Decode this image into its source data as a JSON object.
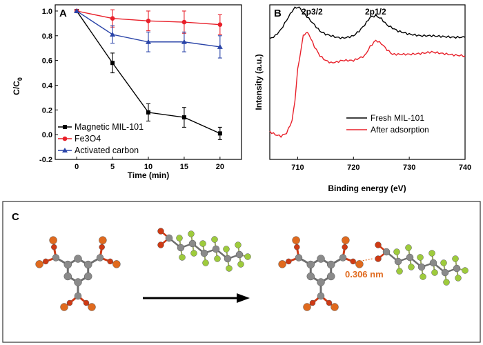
{
  "chart_data": [
    {
      "panel": "A",
      "type": "line",
      "xlabel": "Time (min)",
      "ylabel": "C/C",
      "ylabel_sub": "0",
      "x": [
        0,
        5,
        10,
        15,
        20
      ],
      "xlim": [
        -3,
        23
      ],
      "ylim": [
        -0.2,
        1.05
      ],
      "xticks": [
        0,
        5,
        10,
        15,
        20
      ],
      "yticks": [
        -0.2,
        0.0,
        0.2,
        0.4,
        0.6,
        0.8,
        1.0
      ],
      "ytick_labels": [
        "-0.2",
        "0.0",
        "0.2",
        "0.4",
        "0.6",
        "0.8",
        "1.0"
      ],
      "legend_position": "bottom-left",
      "series": [
        {
          "name": "Magnetic MIL-101",
          "color": "#000000",
          "marker": "square",
          "values": [
            1.0,
            0.58,
            0.18,
            0.14,
            0.01
          ],
          "errors": [
            0,
            0.08,
            0.07,
            0.08,
            0.05
          ]
        },
        {
          "name": "Fe3O4",
          "color": "#e8202a",
          "marker": "circle",
          "values": [
            1.0,
            0.94,
            0.92,
            0.91,
            0.89
          ],
          "errors": [
            0,
            0.07,
            0.08,
            0.09,
            0.08
          ]
        },
        {
          "name": "Activated carbon",
          "color": "#2a44a8",
          "marker": "triangle",
          "values": [
            1.0,
            0.81,
            0.75,
            0.75,
            0.71
          ],
          "errors": [
            0,
            0.07,
            0.08,
            0.08,
            0.09
          ]
        }
      ]
    },
    {
      "panel": "B",
      "type": "line",
      "xlabel": "Binding energy (eV)",
      "ylabel": "Intensity (a.u.)",
      "xlim": [
        705,
        740
      ],
      "xticks": [
        710,
        720,
        730,
        740
      ],
      "ylim": [
        0,
        1
      ],
      "yticks_shown": false,
      "legend_position": "bottom-right",
      "annotations": [
        "2p3/2",
        "2p1/2"
      ],
      "series": [
        {
          "name": "Fresh MIL-101",
          "color": "#000000",
          "x": [
            705,
            706,
            707,
            708,
            709,
            709.5,
            710,
            710.5,
            711,
            712,
            713,
            714,
            715,
            716,
            717,
            718,
            719,
            720,
            721,
            722,
            723,
            724,
            725,
            726,
            728,
            730,
            732,
            734,
            736,
            738,
            740
          ],
          "values": [
            0.78,
            0.8,
            0.84,
            0.9,
            0.96,
            0.98,
            0.985,
            0.975,
            0.95,
            0.91,
            0.87,
            0.83,
            0.81,
            0.8,
            0.79,
            0.785,
            0.79,
            0.8,
            0.83,
            0.87,
            0.92,
            0.93,
            0.91,
            0.87,
            0.83,
            0.81,
            0.8,
            0.8,
            0.795,
            0.79,
            0.79
          ]
        },
        {
          "name": "After adsorption",
          "color": "#e8202a",
          "x": [
            705,
            706,
            707,
            708,
            709,
            709.5,
            710,
            711,
            711.5,
            712,
            713,
            714,
            715,
            716,
            717,
            718,
            720,
            722,
            723,
            724,
            725,
            726,
            727,
            728,
            730,
            732,
            734,
            736,
            738,
            740
          ],
          "values": [
            0.18,
            0.16,
            0.15,
            0.17,
            0.25,
            0.38,
            0.58,
            0.8,
            0.82,
            0.81,
            0.73,
            0.67,
            0.64,
            0.625,
            0.63,
            0.64,
            0.64,
            0.67,
            0.73,
            0.77,
            0.75,
            0.71,
            0.68,
            0.68,
            0.68,
            0.685,
            0.695,
            0.685,
            0.675,
            0.67
          ]
        }
      ]
    }
  ],
  "panel_c": {
    "label": "C",
    "distance_label": "0.306 nm",
    "colors": {
      "carbon": "#8a8a8a",
      "oxygen": "#cf3a14",
      "metal": "#e06a1e",
      "fluorine": "#9ecb3c"
    }
  }
}
